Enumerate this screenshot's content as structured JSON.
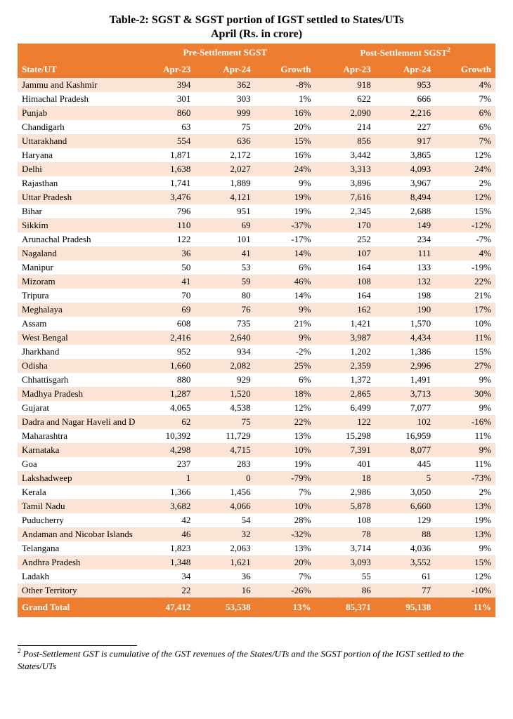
{
  "title": "Table-2: SGST & SGST portion of IGST settled to States/UTs",
  "subtitle": "April (Rs. in crore)",
  "groupHeaders": {
    "pre": "Pre-Settlement SGST",
    "post": "Post-Settlement SGST",
    "postSup": "2"
  },
  "columns": {
    "state": "State/UT",
    "apr23": "Apr-23",
    "apr24": "Apr-24",
    "growth": "Growth"
  },
  "colors": {
    "headerBg": "#ed7d31",
    "headerText": "#ffffff",
    "oddRow": "#fbe4d5",
    "evenRow": "#ffffff",
    "text": "#000000"
  },
  "typography": {
    "family": "Times New Roman",
    "titleSize": 16,
    "bodySize": 13
  },
  "rows": [
    {
      "state": "Jammu and Kashmir",
      "pre23": "394",
      "pre24": "362",
      "preG": "-8%",
      "post23": "918",
      "post24": "953",
      "postG": "4%"
    },
    {
      "state": "Himachal Pradesh",
      "pre23": "301",
      "pre24": "303",
      "preG": "1%",
      "post23": "622",
      "post24": "666",
      "postG": "7%"
    },
    {
      "state": "Punjab",
      "pre23": "860",
      "pre24": "999",
      "preG": "16%",
      "post23": "2,090",
      "post24": "2,216",
      "postG": "6%"
    },
    {
      "state": "Chandigarh",
      "pre23": "63",
      "pre24": "75",
      "preG": "20%",
      "post23": "214",
      "post24": "227",
      "postG": "6%"
    },
    {
      "state": "Uttarakhand",
      "pre23": "554",
      "pre24": "636",
      "preG": "15%",
      "post23": "856",
      "post24": "917",
      "postG": "7%"
    },
    {
      "state": "Haryana",
      "pre23": "1,871",
      "pre24": "2,172",
      "preG": "16%",
      "post23": "3,442",
      "post24": "3,865",
      "postG": "12%"
    },
    {
      "state": "Delhi",
      "pre23": "1,638",
      "pre24": "2,027",
      "preG": "24%",
      "post23": "3,313",
      "post24": "4,093",
      "postG": "24%"
    },
    {
      "state": "Rajasthan",
      "pre23": "1,741",
      "pre24": "1,889",
      "preG": "9%",
      "post23": "3,896",
      "post24": "3,967",
      "postG": "2%"
    },
    {
      "state": "Uttar Pradesh",
      "pre23": "3,476",
      "pre24": "4,121",
      "preG": "19%",
      "post23": "7,616",
      "post24": "8,494",
      "postG": "12%"
    },
    {
      "state": "Bihar",
      "pre23": "796",
      "pre24": "951",
      "preG": "19%",
      "post23": "2,345",
      "post24": "2,688",
      "postG": "15%"
    },
    {
      "state": "Sikkim",
      "pre23": "110",
      "pre24": "69",
      "preG": "-37%",
      "post23": "170",
      "post24": "149",
      "postG": "-12%"
    },
    {
      "state": "Arunachal Pradesh",
      "pre23": "122",
      "pre24": "101",
      "preG": "-17%",
      "post23": "252",
      "post24": "234",
      "postG": "-7%"
    },
    {
      "state": "Nagaland",
      "pre23": "36",
      "pre24": "41",
      "preG": "14%",
      "post23": "107",
      "post24": "111",
      "postG": "4%"
    },
    {
      "state": "Manipur",
      "pre23": "50",
      "pre24": "53",
      "preG": "6%",
      "post23": "164",
      "post24": "133",
      "postG": "-19%"
    },
    {
      "state": "Mizoram",
      "pre23": "41",
      "pre24": "59",
      "preG": "46%",
      "post23": "108",
      "post24": "132",
      "postG": "22%"
    },
    {
      "state": "Tripura",
      "pre23": "70",
      "pre24": "80",
      "preG": "14%",
      "post23": "164",
      "post24": "198",
      "postG": "21%"
    },
    {
      "state": "Meghalaya",
      "pre23": "69",
      "pre24": "76",
      "preG": "9%",
      "post23": "162",
      "post24": "190",
      "postG": "17%"
    },
    {
      "state": "Assam",
      "pre23": "608",
      "pre24": "735",
      "preG": "21%",
      "post23": "1,421",
      "post24": "1,570",
      "postG": "10%"
    },
    {
      "state": "West Bengal",
      "pre23": "2,416",
      "pre24": "2,640",
      "preG": "9%",
      "post23": "3,987",
      "post24": "4,434",
      "postG": "11%"
    },
    {
      "state": "Jharkhand",
      "pre23": "952",
      "pre24": "934",
      "preG": "-2%",
      "post23": "1,202",
      "post24": "1,386",
      "postG": "15%"
    },
    {
      "state": "Odisha",
      "pre23": "1,660",
      "pre24": "2,082",
      "preG": "25%",
      "post23": "2,359",
      "post24": "2,996",
      "postG": "27%"
    },
    {
      "state": "Chhattisgarh",
      "pre23": "880",
      "pre24": "929",
      "preG": "6%",
      "post23": "1,372",
      "post24": "1,491",
      "postG": "9%"
    },
    {
      "state": "Madhya Pradesh",
      "pre23": "1,287",
      "pre24": "1,520",
      "preG": "18%",
      "post23": "2,865",
      "post24": "3,713",
      "postG": "30%"
    },
    {
      "state": "Gujarat",
      "pre23": "4,065",
      "pre24": "4,538",
      "preG": "12%",
      "post23": "6,499",
      "post24": "7,077",
      "postG": "9%"
    },
    {
      "state": "Dadra and Nagar Haveli and Daman",
      "pre23": "62",
      "pre24": "75",
      "preG": "22%",
      "post23": "122",
      "post24": "102",
      "postG": "-16%"
    },
    {
      "state": "Maharashtra",
      "pre23": "10,392",
      "pre24": "11,729",
      "preG": "13%",
      "post23": "15,298",
      "post24": "16,959",
      "postG": "11%"
    },
    {
      "state": "Karnataka",
      "pre23": "4,298",
      "pre24": "4,715",
      "preG": "10%",
      "post23": "7,391",
      "post24": "8,077",
      "postG": "9%"
    },
    {
      "state": "Goa",
      "pre23": "237",
      "pre24": "283",
      "preG": "19%",
      "post23": "401",
      "post24": "445",
      "postG": "11%"
    },
    {
      "state": "Lakshadweep",
      "pre23": "1",
      "pre24": "0",
      "preG": "-79%",
      "post23": "18",
      "post24": "5",
      "postG": "-73%"
    },
    {
      "state": "Kerala",
      "pre23": "1,366",
      "pre24": "1,456",
      "preG": "7%",
      "post23": "2,986",
      "post24": "3,050",
      "postG": "2%"
    },
    {
      "state": "Tamil Nadu",
      "pre23": "3,682",
      "pre24": "4,066",
      "preG": "10%",
      "post23": "5,878",
      "post24": "6,660",
      "postG": "13%"
    },
    {
      "state": "Puducherry",
      "pre23": "42",
      "pre24": "54",
      "preG": "28%",
      "post23": "108",
      "post24": "129",
      "postG": "19%"
    },
    {
      "state": "Andaman and Nicobar Islands",
      "pre23": "46",
      "pre24": "32",
      "preG": "-32%",
      "post23": "78",
      "post24": "88",
      "postG": "13%"
    },
    {
      "state": "Telangana",
      "pre23": "1,823",
      "pre24": "2,063",
      "preG": "13%",
      "post23": "3,714",
      "post24": "4,036",
      "postG": "9%"
    },
    {
      "state": "Andhra Pradesh",
      "pre23": "1,348",
      "pre24": "1,621",
      "preG": "20%",
      "post23": "3,093",
      "post24": "3,552",
      "postG": "15%"
    },
    {
      "state": "Ladakh",
      "pre23": "34",
      "pre24": "36",
      "preG": "7%",
      "post23": "55",
      "post24": "61",
      "postG": "12%"
    },
    {
      "state": "Other Territory",
      "pre23": "22",
      "pre24": "16",
      "preG": "-26%",
      "post23": "86",
      "post24": "77",
      "postG": "-10%"
    }
  ],
  "total": {
    "label": "Grand Total",
    "pre23": "47,412",
    "pre24": "53,538",
    "preG": "13%",
    "post23": "85,371",
    "post24": "95,138",
    "postG": "11%"
  },
  "footnote": {
    "num": "2",
    "text": " Post-Settlement GST is cumulative of the GST revenues of the States/UTs and the SGST portion of the IGST settled to the States/UTs"
  }
}
